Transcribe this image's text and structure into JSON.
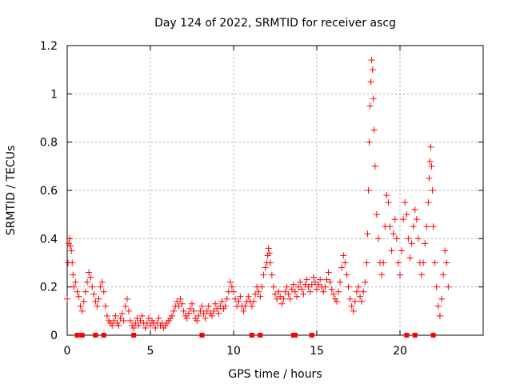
{
  "chart_data": {
    "type": "scatter",
    "title": "Day 124 of 2022, SRMTID for receiver ascg",
    "xlabel": "GPS time / hours",
    "ylabel": "SRMTID / TECUs",
    "xlim": [
      0,
      25
    ],
    "ylim": [
      0,
      1.2
    ],
    "grid": true,
    "marker": "+",
    "color": "#ff0000",
    "x_ticks": [
      0,
      5,
      10,
      15,
      20
    ],
    "x_tick_labels": [
      "0",
      "5",
      "10",
      "15",
      "20"
    ],
    "y_ticks": [
      0,
      0.2,
      0.4,
      0.6,
      0.8,
      1.0,
      1.2
    ],
    "y_tick_labels": [
      "0",
      "0.2",
      "0.4",
      "0.6",
      "0.8",
      "1",
      "1.2"
    ],
    "series": [
      {
        "name": "SRMTID",
        "points": [
          [
            0.0,
            0.15
          ],
          [
            0.05,
            0.3
          ],
          [
            0.1,
            0.38
          ],
          [
            0.15,
            0.4
          ],
          [
            0.2,
            0.37
          ],
          [
            0.25,
            0.35
          ],
          [
            0.3,
            0.3
          ],
          [
            0.35,
            0.25
          ],
          [
            0.4,
            0.2
          ],
          [
            0.5,
            0.22
          ],
          [
            0.6,
            0.18
          ],
          [
            0.7,
            0.16
          ],
          [
            0.8,
            0.12
          ],
          [
            0.9,
            0.1
          ],
          [
            1.0,
            0.14
          ],
          [
            1.1,
            0.18
          ],
          [
            1.2,
            0.22
          ],
          [
            1.3,
            0.26
          ],
          [
            1.4,
            0.24
          ],
          [
            1.5,
            0.2
          ],
          [
            1.6,
            0.17
          ],
          [
            1.7,
            0.14
          ],
          [
            1.8,
            0.12
          ],
          [
            1.9,
            0.15
          ],
          [
            2.0,
            0.2
          ],
          [
            2.1,
            0.22
          ],
          [
            2.2,
            0.18
          ],
          [
            2.3,
            0.12
          ],
          [
            2.4,
            0.08
          ],
          [
            2.5,
            0.06
          ],
          [
            2.6,
            0.05
          ],
          [
            2.7,
            0.04
          ],
          [
            2.8,
            0.06
          ],
          [
            2.9,
            0.08
          ],
          [
            3.0,
            0.05
          ],
          [
            3.1,
            0.04
          ],
          [
            3.2,
            0.07
          ],
          [
            3.3,
            0.09
          ],
          [
            3.4,
            0.06
          ],
          [
            3.5,
            0.12
          ],
          [
            3.6,
            0.15
          ],
          [
            3.7,
            0.1
          ],
          [
            3.8,
            0.06
          ],
          [
            3.9,
            0.04
          ],
          [
            4.0,
            0.03
          ],
          [
            4.1,
            0.05
          ],
          [
            4.2,
            0.07
          ],
          [
            4.3,
            0.04
          ],
          [
            4.4,
            0.06
          ],
          [
            4.5,
            0.08
          ],
          [
            4.6,
            0.05
          ],
          [
            4.7,
            0.03
          ],
          [
            4.8,
            0.05
          ],
          [
            4.9,
            0.07
          ],
          [
            5.0,
            0.04
          ],
          [
            5.1,
            0.06
          ],
          [
            5.2,
            0.05
          ],
          [
            5.3,
            0.03
          ],
          [
            5.4,
            0.05
          ],
          [
            5.5,
            0.07
          ],
          [
            5.6,
            0.04
          ],
          [
            5.7,
            0.05
          ],
          [
            5.8,
            0.03
          ],
          [
            5.9,
            0.04
          ],
          [
            6.0,
            0.05
          ],
          [
            6.1,
            0.06
          ],
          [
            6.2,
            0.07
          ],
          [
            6.3,
            0.08
          ],
          [
            6.4,
            0.1
          ],
          [
            6.5,
            0.12
          ],
          [
            6.6,
            0.14
          ],
          [
            6.7,
            0.12
          ],
          [
            6.8,
            0.15
          ],
          [
            6.9,
            0.13
          ],
          [
            7.0,
            0.1
          ],
          [
            7.1,
            0.08
          ],
          [
            7.2,
            0.07
          ],
          [
            7.3,
            0.09
          ],
          [
            7.4,
            0.11
          ],
          [
            7.5,
            0.13
          ],
          [
            7.6,
            0.1
          ],
          [
            7.7,
            0.07
          ],
          [
            7.8,
            0.06
          ],
          [
            7.9,
            0.08
          ],
          [
            8.0,
            0.1
          ],
          [
            8.1,
            0.12
          ],
          [
            8.2,
            0.09
          ],
          [
            8.3,
            0.07
          ],
          [
            8.4,
            0.1
          ],
          [
            8.5,
            0.12
          ],
          [
            8.6,
            0.09
          ],
          [
            8.7,
            0.08
          ],
          [
            8.8,
            0.1
          ],
          [
            8.9,
            0.13
          ],
          [
            9.0,
            0.11
          ],
          [
            9.1,
            0.09
          ],
          [
            9.2,
            0.12
          ],
          [
            9.3,
            0.14
          ],
          [
            9.4,
            0.11
          ],
          [
            9.5,
            0.12
          ],
          [
            9.6,
            0.15
          ],
          [
            9.7,
            0.18
          ],
          [
            9.8,
            0.22
          ],
          [
            9.9,
            0.2
          ],
          [
            10.0,
            0.18
          ],
          [
            10.1,
            0.15
          ],
          [
            10.2,
            0.12
          ],
          [
            10.3,
            0.14
          ],
          [
            10.4,
            0.16
          ],
          [
            10.5,
            0.12
          ],
          [
            10.6,
            0.1
          ],
          [
            10.7,
            0.12
          ],
          [
            10.8,
            0.14
          ],
          [
            10.9,
            0.16
          ],
          [
            11.0,
            0.14
          ],
          [
            11.1,
            0.12
          ],
          [
            11.2,
            0.14
          ],
          [
            11.3,
            0.17
          ],
          [
            11.4,
            0.2
          ],
          [
            11.5,
            0.18
          ],
          [
            11.6,
            0.16
          ],
          [
            11.7,
            0.2
          ],
          [
            11.8,
            0.25
          ],
          [
            11.9,
            0.28
          ],
          [
            12.0,
            0.3
          ],
          [
            12.05,
            0.33
          ],
          [
            12.1,
            0.36
          ],
          [
            12.15,
            0.34
          ],
          [
            12.2,
            0.3
          ],
          [
            12.3,
            0.25
          ],
          [
            12.4,
            0.2
          ],
          [
            12.5,
            0.17
          ],
          [
            12.6,
            0.15
          ],
          [
            12.7,
            0.18
          ],
          [
            12.8,
            0.16
          ],
          [
            12.9,
            0.13
          ],
          [
            13.0,
            0.15
          ],
          [
            13.1,
            0.18
          ],
          [
            13.2,
            0.2
          ],
          [
            13.3,
            0.17
          ],
          [
            13.4,
            0.15
          ],
          [
            13.5,
            0.19
          ],
          [
            13.6,
            0.21
          ],
          [
            13.7,
            0.18
          ],
          [
            13.8,
            0.16
          ],
          [
            13.9,
            0.2
          ],
          [
            14.0,
            0.22
          ],
          [
            14.1,
            0.19
          ],
          [
            14.2,
            0.17
          ],
          [
            14.3,
            0.21
          ],
          [
            14.4,
            0.23
          ],
          [
            14.5,
            0.2
          ],
          [
            14.6,
            0.18
          ],
          [
            14.7,
            0.21
          ],
          [
            14.8,
            0.24
          ],
          [
            14.9,
            0.22
          ],
          [
            15.0,
            0.19
          ],
          [
            15.1,
            0.21
          ],
          [
            15.2,
            0.23
          ],
          [
            15.3,
            0.2
          ],
          [
            15.4,
            0.18
          ],
          [
            15.5,
            0.2
          ],
          [
            15.6,
            0.23
          ],
          [
            15.7,
            0.26
          ],
          [
            15.8,
            0.22
          ],
          [
            15.9,
            0.19
          ],
          [
            16.0,
            0.17
          ],
          [
            16.1,
            0.15
          ],
          [
            16.2,
            0.14
          ],
          [
            16.3,
            0.18
          ],
          [
            16.4,
            0.22
          ],
          [
            16.5,
            0.28
          ],
          [
            16.6,
            0.33
          ],
          [
            16.7,
            0.3
          ],
          [
            16.8,
            0.25
          ],
          [
            16.9,
            0.2
          ],
          [
            17.0,
            0.15
          ],
          [
            17.1,
            0.12
          ],
          [
            17.2,
            0.1
          ],
          [
            17.3,
            0.14
          ],
          [
            17.4,
            0.18
          ],
          [
            17.5,
            0.2
          ],
          [
            17.6,
            0.16
          ],
          [
            17.7,
            0.14
          ],
          [
            17.8,
            0.18
          ],
          [
            17.9,
            0.22
          ],
          [
            18.0,
            0.3
          ],
          [
            18.05,
            0.42
          ],
          [
            18.1,
            0.6
          ],
          [
            18.15,
            0.8
          ],
          [
            18.2,
            0.95
          ],
          [
            18.25,
            1.05
          ],
          [
            18.3,
            1.14
          ],
          [
            18.35,
            1.1
          ],
          [
            18.4,
            0.98
          ],
          [
            18.45,
            0.85
          ],
          [
            18.5,
            0.7
          ],
          [
            18.6,
            0.5
          ],
          [
            18.7,
            0.4
          ],
          [
            18.8,
            0.3
          ],
          [
            18.9,
            0.25
          ],
          [
            19.0,
            0.3
          ],
          [
            19.1,
            0.45
          ],
          [
            19.2,
            0.58
          ],
          [
            19.3,
            0.55
          ],
          [
            19.4,
            0.45
          ],
          [
            19.5,
            0.35
          ],
          [
            19.6,
            0.42
          ],
          [
            19.7,
            0.48
          ],
          [
            19.8,
            0.4
          ],
          [
            19.9,
            0.3
          ],
          [
            20.0,
            0.25
          ],
          [
            20.1,
            0.35
          ],
          [
            20.2,
            0.48
          ],
          [
            20.3,
            0.55
          ],
          [
            20.4,
            0.5
          ],
          [
            20.5,
            0.4
          ],
          [
            20.6,
            0.32
          ],
          [
            20.7,
            0.38
          ],
          [
            20.8,
            0.45
          ],
          [
            20.9,
            0.52
          ],
          [
            21.0,
            0.48
          ],
          [
            21.1,
            0.4
          ],
          [
            21.2,
            0.3
          ],
          [
            21.3,
            0.25
          ],
          [
            21.4,
            0.3
          ],
          [
            21.5,
            0.38
          ],
          [
            21.6,
            0.45
          ],
          [
            21.7,
            0.55
          ],
          [
            21.75,
            0.65
          ],
          [
            21.8,
            0.72
          ],
          [
            21.85,
            0.78
          ],
          [
            21.9,
            0.7
          ],
          [
            21.95,
            0.6
          ],
          [
            22.0,
            0.45
          ],
          [
            22.1,
            0.3
          ],
          [
            22.2,
            0.2
          ],
          [
            22.3,
            0.12
          ],
          [
            22.4,
            0.08
          ],
          [
            22.5,
            0.15
          ],
          [
            22.6,
            0.25
          ],
          [
            22.7,
            0.35
          ],
          [
            22.8,
            0.3
          ],
          [
            22.9,
            0.2
          ]
        ]
      }
    ]
  }
}
